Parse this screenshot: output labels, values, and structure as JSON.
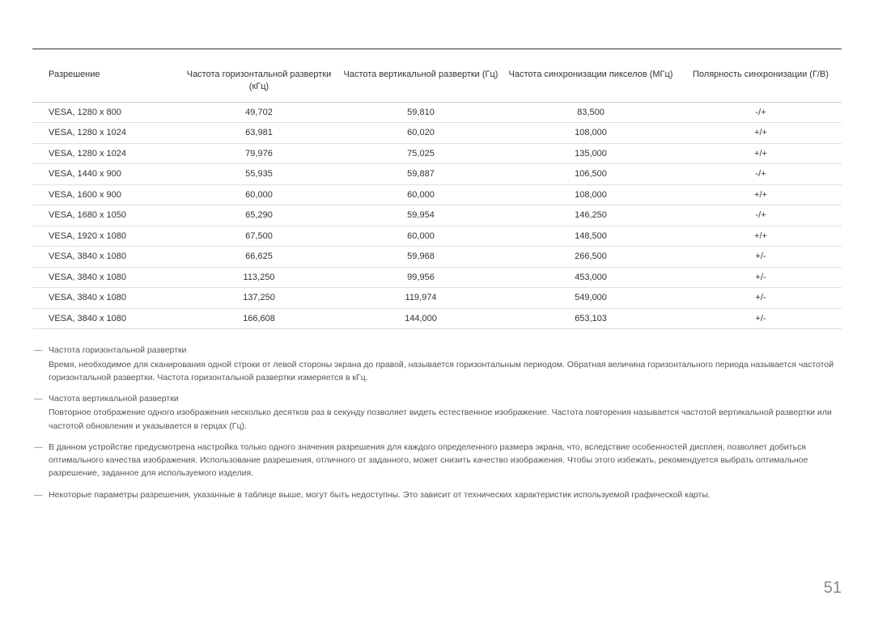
{
  "page_number": "51",
  "table": {
    "columns": [
      "Разрешение",
      "Частота горизонтальной развертки (кГц)",
      "Частота вертикальной развертки (Гц)",
      "Частота синхронизации пикселов (МГц)",
      "Полярность синхронизации (Г/В)"
    ],
    "rows": [
      [
        "VESA, 1280 x 800",
        "49,702",
        "59,810",
        "83,500",
        "-/+"
      ],
      [
        "VESA, 1280 x 1024",
        "63,981",
        "60,020",
        "108,000",
        "+/+"
      ],
      [
        "VESA, 1280 x 1024",
        "79,976",
        "75,025",
        "135,000",
        "+/+"
      ],
      [
        "VESA, 1440 x 900",
        "55,935",
        "59,887",
        "106,500",
        "-/+"
      ],
      [
        "VESA, 1600 x 900",
        "60,000",
        "60,000",
        "108,000",
        "+/+"
      ],
      [
        "VESA, 1680 x 1050",
        "65,290",
        "59,954",
        "146,250",
        "-/+"
      ],
      [
        "VESA, 1920 x 1080",
        "67,500",
        "60,000",
        "148,500",
        "+/+"
      ],
      [
        "VESA, 3840 x 1080",
        "66,625",
        "59,968",
        "266,500",
        "+/-"
      ],
      [
        "VESA, 3840 x 1080",
        "113,250",
        "99,956",
        "453,000",
        "+/-"
      ],
      [
        "VESA, 3840 x 1080",
        "137,250",
        "119,974",
        "549,000",
        "+/-"
      ],
      [
        "VESA, 3840 x 1080",
        "166,608",
        "144,000",
        "653,103",
        "+/-"
      ]
    ]
  },
  "notes": [
    {
      "title": "Частота горизонтальной развертки",
      "body": "Время, необходимое для сканирования одной строки от левой стороны экрана до правой, называется горизонтальным периодом. Обратная величина горизонтального периода называется частотой горизонтальной развертки. Частота горизонтальной развертки измеряется в кГц."
    },
    {
      "title": "Частота вертикальной развертки",
      "body": "Повторное отображение одного изображения несколько десятков раз в секунду позволяет видеть естественное изображение. Частота повторения называется частотой вертикальной развертки или частотой обновления и указывается в герцах (Гц)."
    },
    {
      "title": "",
      "body": "В данном устройстве предусмотрена настройка только одного значения разрешения для каждого определенного размера экрана, что, вследствие особенностей дисплея, позволяет добиться оптимального качества изображения. Использование разрешения, отличного от заданного, может снизить качество изображения. Чтобы этого избежать, рекомендуется выбрать оптимальное разрешение, заданное для используемого изделия."
    },
    {
      "title": "",
      "body": "Некоторые параметры разрешения, указанные в таблице выше, могут быть недоступны. Это зависит от технических характеристик используемой графической карты."
    }
  ]
}
